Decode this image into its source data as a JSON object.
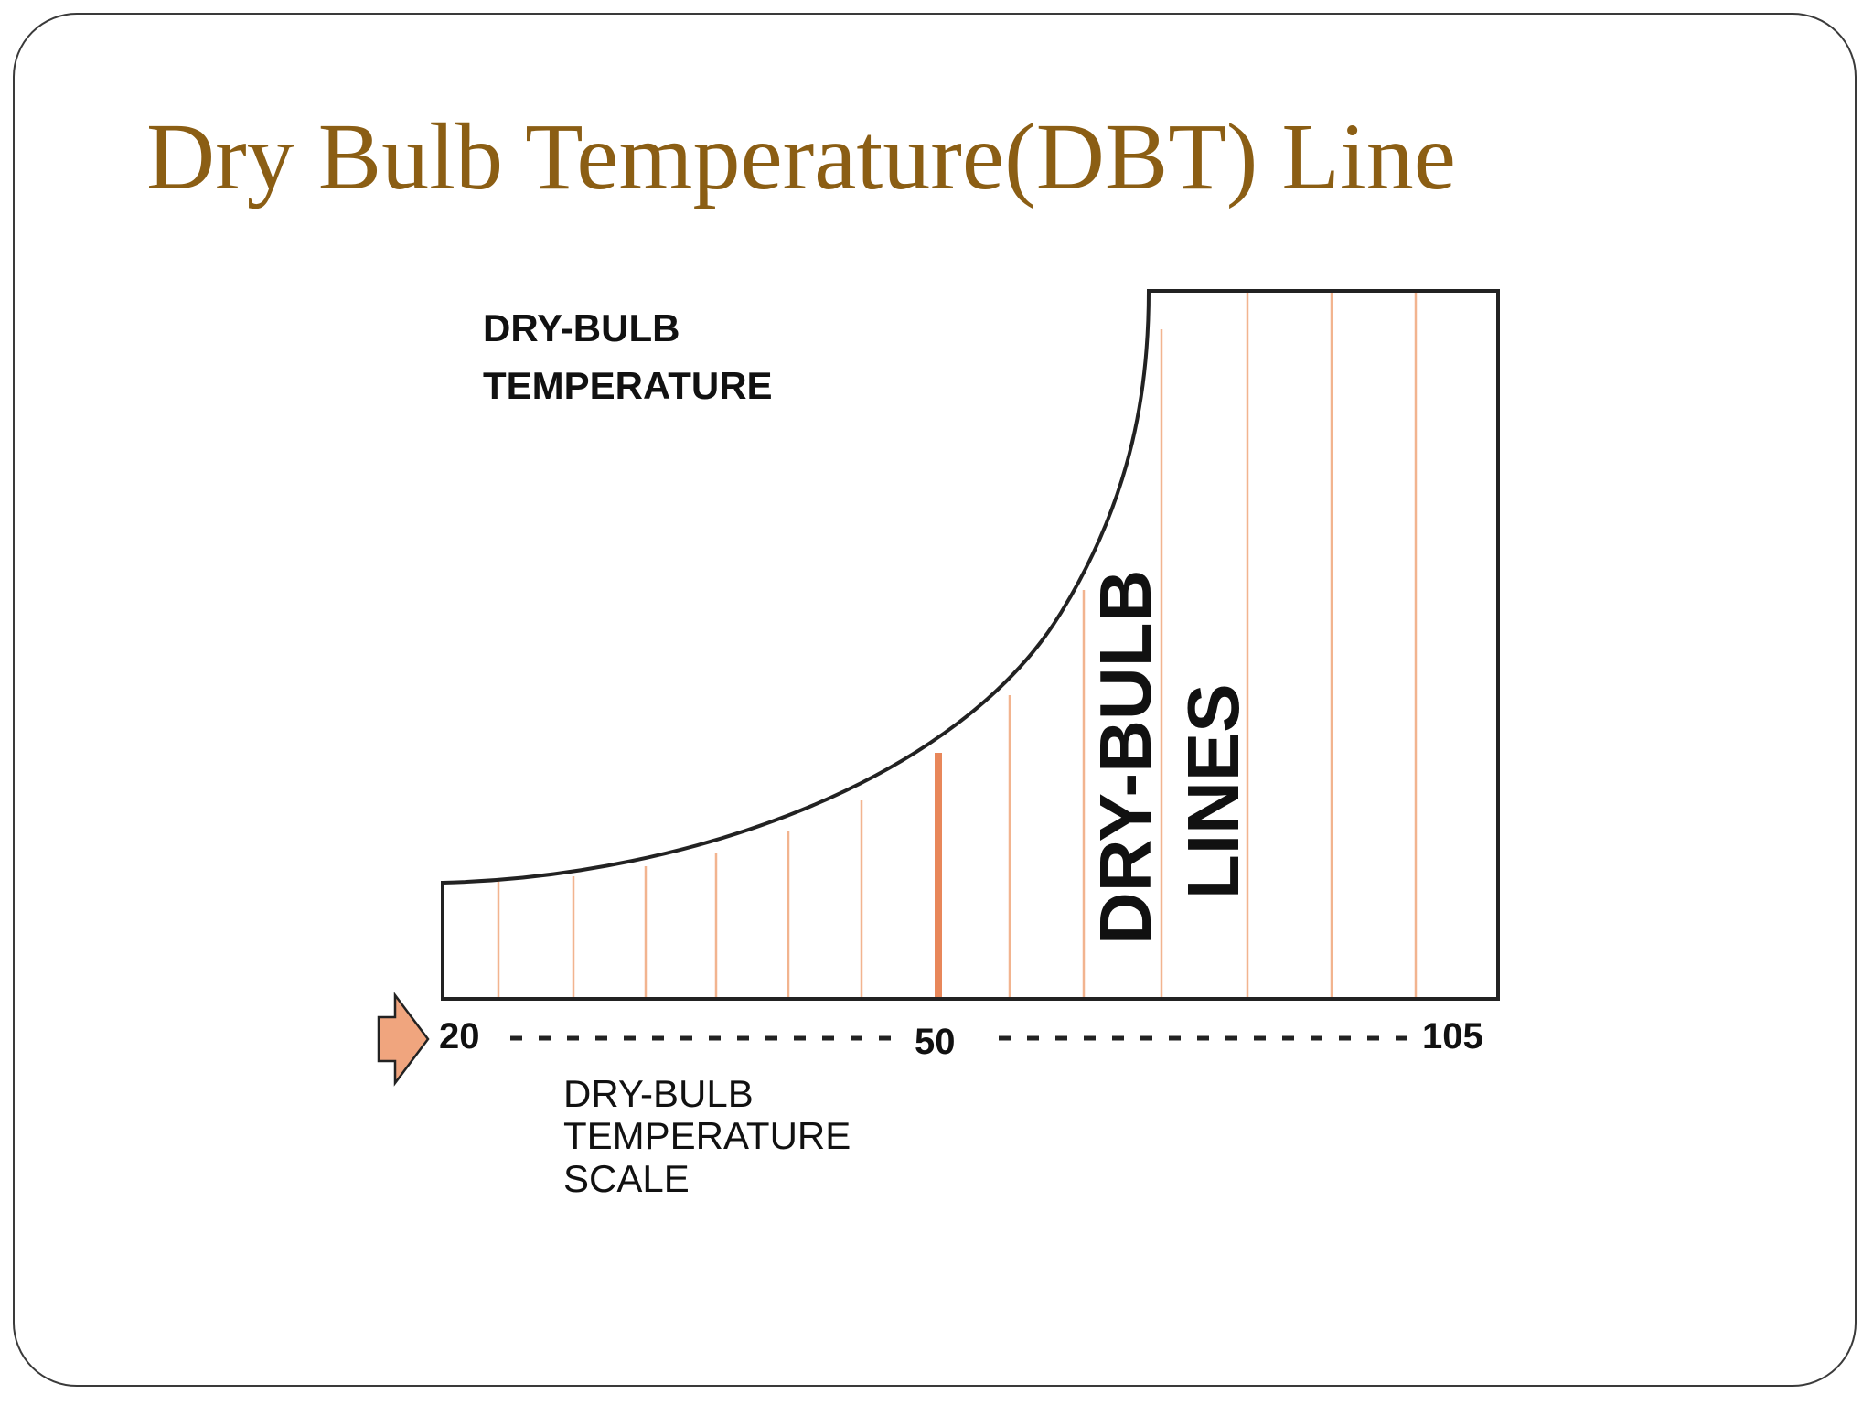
{
  "slide": {
    "title": "Dry Bulb Temperature(DBT) Line"
  },
  "diagram": {
    "top_label": [
      "DRY-BULB",
      "TEMPERATURE"
    ],
    "vertical_label": [
      "DRY-BULB",
      "LINES"
    ],
    "scale_label": [
      "DRY-BULB",
      "TEMPERATURE",
      "SCALE"
    ],
    "scale_ticks": [
      "20",
      "50",
      "105"
    ],
    "colors": {
      "title": "#8b5e14",
      "dry_bulb_line": "#f2b48f",
      "highlight_line": "#e8875a",
      "arrow_fill": "#f0a57e",
      "outline": "#222222"
    },
    "icons": {
      "scale_pointer": "right-arrow-icon"
    }
  }
}
